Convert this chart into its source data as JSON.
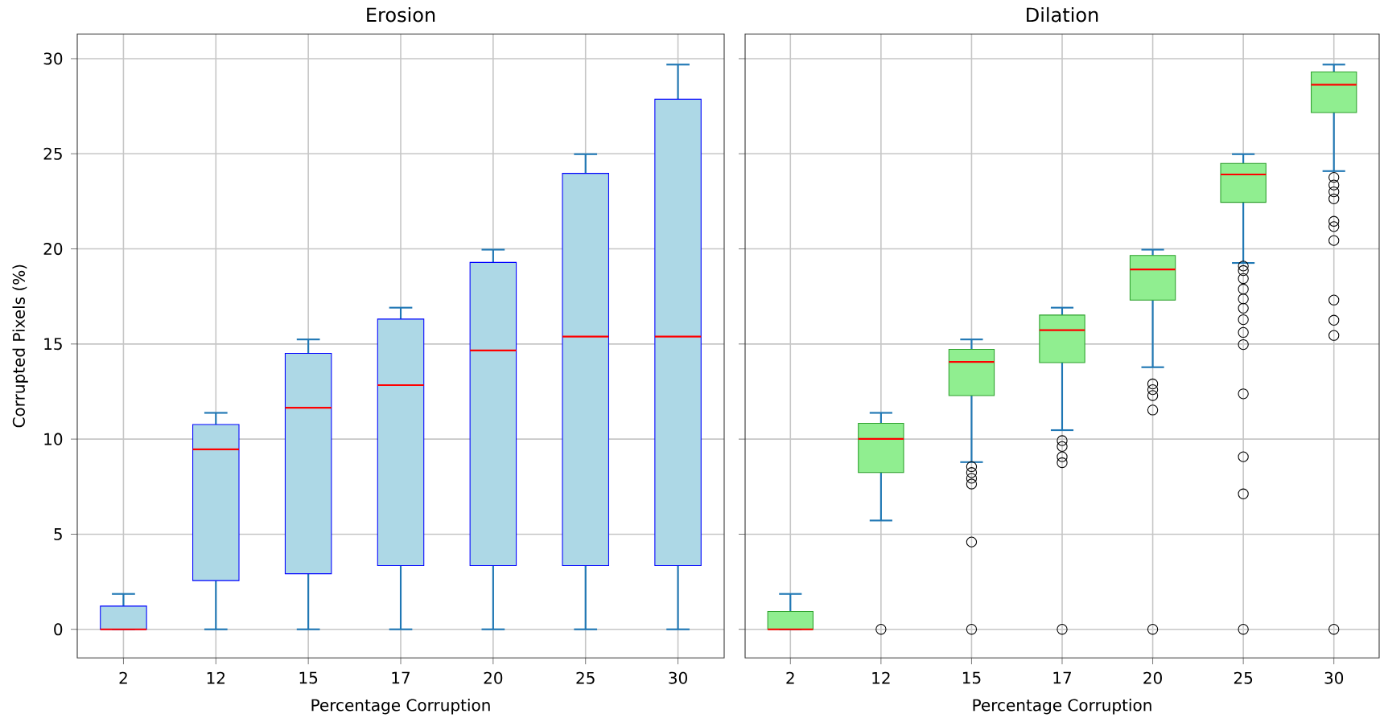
{
  "chart_data": [
    {
      "type": "box",
      "title": "Erosion",
      "xlabel": "Percentage Corruption",
      "ylabel": "Corrupted Pixels (%)",
      "categories": [
        "2",
        "12",
        "15",
        "17",
        "20",
        "25",
        "30"
      ],
      "color": "#add8e6",
      "ylim": [
        -1.5,
        31.3
      ],
      "yticks": [
        0,
        5,
        10,
        15,
        20,
        25,
        30
      ],
      "grid": true,
      "boxes": [
        {
          "low": 0,
          "q1": 0,
          "median": 0,
          "q3": 1.22,
          "high": 1.86
        },
        {
          "low": 0,
          "q1": 2.56,
          "median": 9.46,
          "q3": 10.77,
          "high": 11.38
        },
        {
          "low": 0,
          "q1": 2.92,
          "median": 11.65,
          "q3": 14.51,
          "high": 15.24
        },
        {
          "low": 0,
          "q1": 3.35,
          "median": 12.84,
          "q3": 16.31,
          "high": 16.91
        },
        {
          "low": 0,
          "q1": 3.35,
          "median": 14.66,
          "q3": 19.29,
          "high": 19.96
        },
        {
          "low": 0,
          "q1": 3.35,
          "median": 15.39,
          "q3": 23.97,
          "high": 24.98
        },
        {
          "low": 0,
          "q1": 3.35,
          "median": 15.39,
          "q3": 27.87,
          "high": 29.69
        }
      ]
    },
    {
      "type": "box",
      "title": "Dilation",
      "xlabel": "Percentage Corruption",
      "categories": [
        "2",
        "12",
        "15",
        "17",
        "20",
        "25",
        "30"
      ],
      "color": "#90ee90",
      "ylim": [
        -1.5,
        31.3
      ],
      "yticks": [
        0,
        5,
        10,
        15,
        20,
        25,
        30
      ],
      "grid": true,
      "tick_labels": "x",
      "boxes": [
        {
          "low": 0,
          "q1": 0,
          "median": 0,
          "q3": 0.94,
          "high": 1.86
        },
        {
          "low": 5.72,
          "q1": 8.24,
          "median": 10.01,
          "q3": 10.83,
          "high": 11.38,
          "outliers": [
            0
          ]
        },
        {
          "low": 8.79,
          "q1": 12.29,
          "median": 14.06,
          "q3": 14.72,
          "high": 15.24,
          "outliers": [
            0,
            4.59,
            7.64,
            7.94,
            8.24,
            8.55
          ]
        },
        {
          "low": 10.47,
          "q1": 14.02,
          "median": 15.73,
          "q3": 16.52,
          "high": 16.91,
          "outliers": [
            0,
            8.76,
            9.07,
            9.61,
            9.92
          ]
        },
        {
          "low": 13.78,
          "q1": 17.31,
          "median": 18.92,
          "q3": 19.65,
          "high": 19.96,
          "outliers": [
            0,
            11.53,
            12.29,
            12.6,
            12.9
          ]
        },
        {
          "low": 19.26,
          "q1": 22.45,
          "median": 23.91,
          "q3": 24.49,
          "high": 24.98,
          "outliers": [
            0,
            7.12,
            9.07,
            12.38,
            14.97,
            15.61,
            16.28,
            16.88,
            17.37,
            17.89,
            18.44,
            18.86,
            19.1
          ]
        },
        {
          "low": 24.09,
          "q1": 27.17,
          "median": 28.63,
          "q3": 29.3,
          "high": 29.69,
          "outliers": [
            0,
            15.45,
            16.25,
            17.31,
            20.44,
            21.17,
            21.45,
            22.63,
            23.0,
            23.36,
            23.76
          ]
        }
      ]
    }
  ]
}
